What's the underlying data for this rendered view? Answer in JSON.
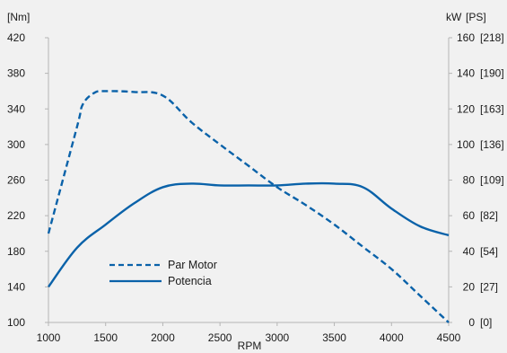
{
  "chart_data": {
    "type": "line",
    "x": [
      1000,
      1250,
      1300,
      1400,
      1500,
      1750,
      2000,
      2250,
      2500,
      2750,
      3000,
      3250,
      3500,
      3750,
      4000,
      4250,
      4500
    ],
    "xlim": [
      1000,
      4500
    ],
    "xticks": [
      1000,
      1500,
      2000,
      2500,
      3000,
      3500,
      4000,
      4500
    ],
    "xlabel": "RPM",
    "left_axis": {
      "title": "[Nm]",
      "ylim": [
        100,
        420
      ],
      "ticks": [
        100,
        140,
        180,
        220,
        260,
        300,
        340,
        380,
        420
      ]
    },
    "right_axis": {
      "title_kw": "kW",
      "title_ps": "[PS]",
      "ylim": [
        0,
        160
      ],
      "ticks": [
        {
          "kw": "0",
          "ps": "[0]"
        },
        {
          "kw": "20",
          "ps": "[27]"
        },
        {
          "kw": "40",
          "ps": "[54]"
        },
        {
          "kw": "60",
          "ps": "[82]"
        },
        {
          "kw": "80",
          "ps": "[109]"
        },
        {
          "kw": "100",
          "ps": "[136]"
        },
        {
          "kw": "120",
          "ps": "[163]"
        },
        {
          "kw": "140",
          "ps": "[190]"
        },
        {
          "kw": "160",
          "ps": "[218]"
        }
      ]
    },
    "series": [
      {
        "name": "Par Motor",
        "axis": "left",
        "style": "dashed",
        "color": "#0a62a9",
        "points": [
          [
            1000,
            200
          ],
          [
            1250,
            320
          ],
          [
            1300,
            345
          ],
          [
            1400,
            358
          ],
          [
            1500,
            360
          ],
          [
            1750,
            359
          ],
          [
            2000,
            355
          ],
          [
            2250,
            325
          ],
          [
            2500,
            300
          ],
          [
            2750,
            276
          ],
          [
            3000,
            252
          ],
          [
            3250,
            232
          ],
          [
            3500,
            210
          ],
          [
            3750,
            185
          ],
          [
            4000,
            160
          ],
          [
            4250,
            130
          ],
          [
            4500,
            100
          ]
        ]
      },
      {
        "name": "Potencia",
        "axis": "right",
        "style": "solid",
        "color": "#0a62a9",
        "points": [
          [
            1000,
            20
          ],
          [
            1250,
            42
          ],
          [
            1500,
            55
          ],
          [
            1750,
            67
          ],
          [
            2000,
            76
          ],
          [
            2250,
            78
          ],
          [
            2500,
            77
          ],
          [
            2750,
            77
          ],
          [
            3000,
            77
          ],
          [
            3250,
            78
          ],
          [
            3500,
            78
          ],
          [
            3750,
            76
          ],
          [
            4000,
            64
          ],
          [
            4250,
            54
          ],
          [
            4500,
            49
          ]
        ]
      }
    ],
    "legend": "lower-left"
  }
}
